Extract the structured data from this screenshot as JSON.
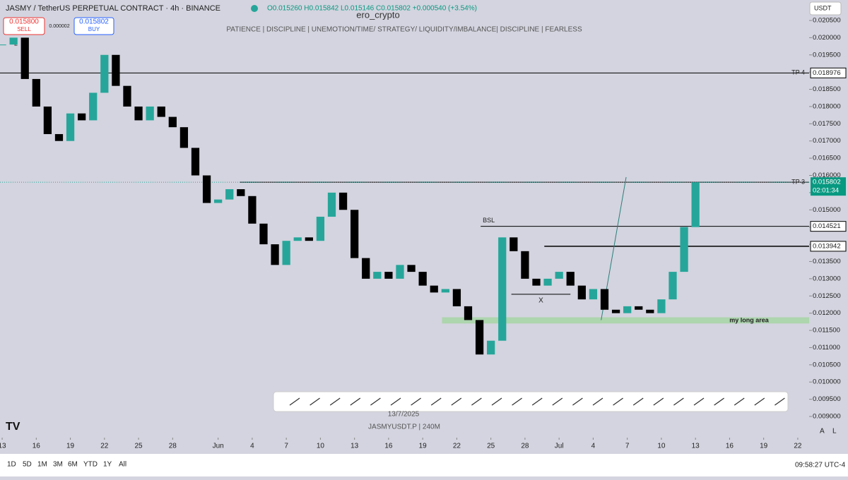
{
  "header": {
    "symbol": "JASMY / TetherUS PERPETUAL CONTRACT · 4h · BINANCE",
    "ohlc": "O0.015260 H0.015842 L0.015146 C0.015802 +0.000540 (+3.54%)",
    "indicator_count": "2"
  },
  "trade": {
    "sell_price": "0.015800",
    "sell": "SELL",
    "spread": "0.000002",
    "buy_price": "0.015802",
    "buy": "BUY"
  },
  "author": "ero_crypto",
  "motto": "PATIENCE  |  DISCIPLINE  |  UNEMOTION/TIME/ STRATEGY/ LIQUIDITY/IMBALANCE|  DISCIPLINE  |  FEARLESS",
  "currency": "USDT",
  "chart_data": {
    "type": "candlestick",
    "x": [
      0,
      1,
      2,
      3,
      4,
      5,
      6,
      7,
      8,
      9,
      10,
      11,
      12,
      13,
      14,
      15,
      16,
      17,
      18,
      19,
      20,
      21,
      22,
      23,
      24,
      25,
      26,
      27,
      28,
      29,
      30,
      31,
      32,
      33,
      34,
      35,
      36,
      37,
      38,
      39,
      40,
      41,
      42,
      43,
      44,
      45,
      46,
      47,
      48,
      49,
      50,
      51,
      52,
      53,
      54,
      55,
      56,
      57,
      58,
      59,
      60,
      61
    ],
    "close": [
      0.0198,
      0.02,
      0.0188,
      0.018,
      0.0172,
      0.017,
      0.0178,
      0.0176,
      0.0184,
      0.0195,
      0.0186,
      0.018,
      0.0176,
      0.018,
      0.0177,
      0.0174,
      0.0168,
      0.016,
      0.0152,
      0.0153,
      0.0156,
      0.0154,
      0.0146,
      0.014,
      0.0134,
      0.0141,
      0.0142,
      0.0141,
      0.0148,
      0.0155,
      0.015,
      0.0136,
      0.013,
      0.0132,
      0.013,
      0.0134,
      0.0132,
      0.0128,
      0.0126,
      0.0127,
      0.0122,
      0.0118,
      0.0108,
      0.0112,
      0.0142,
      0.0138,
      0.013,
      0.0128,
      0.013,
      0.0132,
      0.0128,
      0.0124,
      0.0127,
      0.0121,
      0.012,
      0.0122,
      0.0121,
      0.012,
      0.0124,
      0.0132,
      0.0145,
      0.015802
    ],
    "up_color": "#26a69a",
    "down_color": "#000000",
    "xlim": [
      -0.19,
      71
    ],
    "ylim": [
      0.008385,
      0.021094
    ],
    "xticks": [
      {
        "value": 0,
        "label": "13"
      },
      {
        "value": 3,
        "label": "16"
      },
      {
        "value": 6,
        "label": "19"
      },
      {
        "value": 9,
        "label": "22"
      },
      {
        "value": 12,
        "label": "25"
      },
      {
        "value": 15,
        "label": "28"
      },
      {
        "value": 19,
        "label": "Jun"
      },
      {
        "value": 22,
        "label": "4"
      },
      {
        "value": 25,
        "label": "7"
      },
      {
        "value": 28,
        "label": "10"
      },
      {
        "value": 31,
        "label": "13"
      },
      {
        "value": 34,
        "label": "16"
      },
      {
        "value": 37,
        "label": "19"
      },
      {
        "value": 40,
        "label": "22"
      },
      {
        "value": 43,
        "label": "25"
      },
      {
        "value": 46,
        "label": "28"
      },
      {
        "value": 49,
        "label": "Jul"
      },
      {
        "value": 52,
        "label": "4"
      },
      {
        "value": 55,
        "label": "7"
      },
      {
        "value": 58,
        "label": "10"
      },
      {
        "value": 61,
        "label": "13"
      },
      {
        "value": 64,
        "label": "16"
      },
      {
        "value": 67,
        "label": "19"
      },
      {
        "value": 70,
        "label": "22"
      }
    ],
    "yticks": [
      {
        "value": 0.009,
        "label": "0.009000"
      },
      {
        "value": 0.0095,
        "label": "0.009500"
      },
      {
        "value": 0.01,
        "label": "0.010000"
      },
      {
        "value": 0.0105,
        "label": "0.010500"
      },
      {
        "value": 0.011,
        "label": "0.011000"
      },
      {
        "value": 0.0115,
        "label": "0.011500"
      },
      {
        "value": 0.012,
        "label": "0.012000"
      },
      {
        "value": 0.0125,
        "label": "0.012500"
      },
      {
        "value": 0.013,
        "label": "0.013000"
      },
      {
        "value": 0.0135,
        "label": "0.013500"
      },
      {
        "value": 0.014,
        "label": "0.014000"
      },
      {
        "value": 0.0145,
        "label": "0.014500"
      },
      {
        "value": 0.015,
        "label": "0.015000"
      },
      {
        "value": 0.0155,
        "label": "0.015500"
      },
      {
        "value": 0.016,
        "label": "0.016000"
      },
      {
        "value": 0.0165,
        "label": "0.016500"
      },
      {
        "value": 0.017,
        "label": "0.017000"
      },
      {
        "value": 0.0175,
        "label": "0.017500"
      },
      {
        "value": 0.018,
        "label": "0.018000"
      },
      {
        "value": 0.0185,
        "label": "0.018500"
      },
      {
        "value": 0.019,
        "label": "0.019000"
      },
      {
        "value": 0.0195,
        "label": "0.019500"
      },
      {
        "value": 0.02,
        "label": "0.020000"
      },
      {
        "value": 0.0205,
        "label": "0.020500"
      }
    ],
    "levels": [
      {
        "name": "TP 4",
        "value": 0.018976,
        "from": -0.19
      },
      {
        "name": "TP 3",
        "value": 0.015802,
        "from": 20.9
      },
      {
        "name": "BSL",
        "value": 0.014521,
        "from": 42.1
      },
      {
        "value": 0.013942,
        "from": 47.7
      }
    ],
    "price_tag": {
      "value": 0.015802,
      "countdown": "02:01:34"
    },
    "zone": {
      "label": "my long area",
      "low": 0.0117,
      "high": 0.01188,
      "from": 38.7,
      "to": 71
    },
    "marker": {
      "label": "X",
      "value": 0.01255,
      "from": 44.8,
      "to": 50
    },
    "arrow": {
      "x": [
        52.7,
        54.9
      ],
      "y": [
        0.0118,
        0.01595
      ]
    }
  },
  "footer": {
    "date_label": "13/7/2025",
    "symbol_note": "JASMYUSDT.P | 240M",
    "ranges": [
      "1D",
      "5D",
      "1M",
      "3M",
      "6M",
      "YTD",
      "1Y",
      "All"
    ],
    "clock": "09:58:27 UTC-4",
    "scale_buttons": [
      "A",
      "L"
    ]
  }
}
